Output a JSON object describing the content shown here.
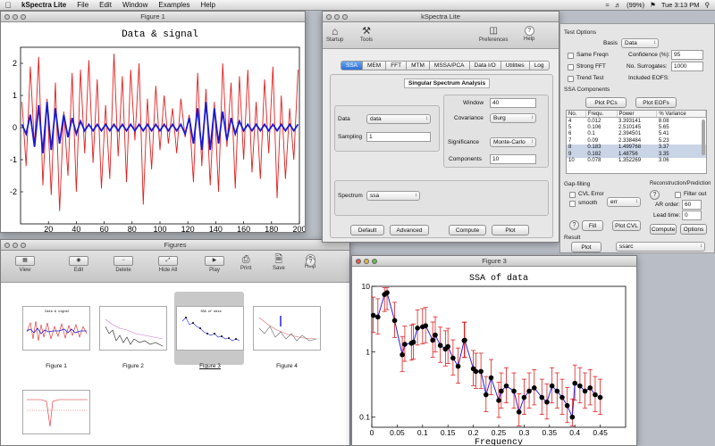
{
  "menubar": {
    "app": "kSpectra Lite",
    "items": [
      "File",
      "Edit",
      "Window",
      "Examples",
      "Help"
    ],
    "status": "(99%)",
    "clock": "Tue 3:13 PM"
  },
  "figure1": {
    "title": "Figure 1",
    "chart_data": {
      "type": "line",
      "title": "Data & signal",
      "xlim": [
        0,
        200
      ],
      "ylim": [
        -3,
        2.5
      ],
      "xticks": [
        20,
        40,
        60,
        80,
        100,
        120,
        140,
        160,
        180,
        200
      ],
      "yticks": [
        2,
        1,
        0,
        -1,
        -2
      ],
      "series": [
        {
          "color": "#e02020",
          "x": [
            1,
            4,
            7,
            10,
            13,
            16,
            19,
            22,
            25,
            28,
            31,
            34,
            37,
            40,
            43,
            46,
            49,
            52,
            55,
            58,
            61,
            64,
            67,
            70,
            73,
            76,
            79,
            82,
            85,
            88,
            91,
            94,
            97,
            100,
            103,
            106,
            109,
            112,
            115,
            118,
            121,
            124,
            127,
            130,
            133,
            136,
            139,
            142,
            145,
            148,
            151,
            154,
            157,
            160,
            163,
            166,
            169,
            172,
            175,
            178,
            181,
            184,
            187,
            190,
            193,
            196,
            199
          ],
          "y": [
            0.8,
            -1.2,
            1.9,
            -0.6,
            2.2,
            -1.8,
            0.9,
            -2.1,
            1.4,
            -2.6,
            0.5,
            -1.5,
            1.7,
            -2.0,
            1.8,
            -0.8,
            2.1,
            -1.1,
            1.5,
            -1.9,
            0.7,
            -1.6,
            2.3,
            -0.9,
            1.6,
            -1.7,
            1.8,
            -0.4,
            2.0,
            -2.4,
            0.9,
            -1.3,
            1.3,
            -0.7,
            1.0,
            -0.5,
            0.6,
            -0.8,
            0.9,
            -0.3,
            0.4,
            -1.7,
            1.7,
            -1.2,
            1.2,
            -1.8,
            0.8,
            -2.0,
            2.0,
            -0.6,
            1.4,
            -1.9,
            1.6,
            -1.0,
            1.8,
            -1.4,
            0.8,
            -1.6,
            1.5,
            -0.8,
            1.9,
            -2.2,
            1.0,
            -1.6,
            0.6,
            -1.0,
            1.8
          ]
        },
        {
          "color": "#1a1ad0",
          "x": [
            1,
            4,
            7,
            10,
            13,
            16,
            19,
            22,
            25,
            28,
            31,
            34,
            37,
            40,
            43,
            46,
            49,
            52,
            55,
            58,
            61,
            64,
            67,
            70,
            73,
            76,
            79,
            82,
            85,
            88,
            91,
            94,
            97,
            100,
            103,
            106,
            109,
            112,
            115,
            118,
            121,
            124,
            127,
            130,
            133,
            136,
            139,
            142,
            145,
            148,
            151,
            154,
            157,
            160,
            163,
            166,
            169,
            172,
            175,
            178,
            181,
            184,
            187,
            190,
            193,
            196,
            199
          ],
          "y": [
            0.1,
            -0.2,
            0.4,
            -0.6,
            0.7,
            -0.8,
            0.8,
            -0.7,
            0.6,
            -0.5,
            0.4,
            -0.3,
            0.3,
            -0.2,
            0.2,
            -0.1,
            0.1,
            -0.1,
            0.1,
            -0.1,
            0.1,
            -0.1,
            0.1,
            -0.1,
            0.1,
            -0.1,
            0.1,
            -0.1,
            0.1,
            -0.1,
            0.1,
            -0.1,
            0.1,
            -0.1,
            0.1,
            -0.1,
            0.1,
            -0.1,
            0.1,
            -0.2,
            0.3,
            -0.5,
            0.6,
            -0.7,
            0.8,
            -0.7,
            0.6,
            -0.5,
            0.5,
            -0.4,
            0.3,
            -0.2,
            0.2,
            -0.1,
            0.1,
            -0.1,
            0.1,
            -0.1,
            0.1,
            -0.1,
            0.1,
            -0.1,
            0.1,
            -0.1,
            0.1,
            -0.1,
            0.1
          ]
        }
      ]
    }
  },
  "kspectra": {
    "title": "kSpectra Lite",
    "toolbar": [
      "Startup",
      "Tools",
      "Preferences",
      "Help"
    ],
    "tabs": [
      "SSA",
      "MEM",
      "FFT",
      "MTM",
      "MSSA/PCA",
      "Data I/O",
      "Utilities",
      "Log"
    ],
    "active_tab": "SSA",
    "heading": "Singular Spectrum Analysis",
    "data_label": "Data",
    "data_value": "data",
    "sampling_label": "Sampling",
    "sampling_value": "1",
    "window_label": "Window",
    "window_value": "40",
    "covariance_label": "Covariance",
    "covariance_value": "Burg",
    "significance_label": "Significance",
    "significance_value": "Monte-Carlo",
    "components_label": "Components",
    "components_value": "10",
    "spectrum_label": "Spectrum",
    "spectrum_value": "ssa",
    "buttons": [
      "Default",
      "Advanced",
      "Compute",
      "Plot"
    ]
  },
  "options": {
    "test_options": "Test Options",
    "basis_label": "Basis",
    "basis_value": "Data",
    "same_freqn": "Same Freqn",
    "confidence_label": "Confidence (%):",
    "confidence_value": "95",
    "strong_fft": "Strong FFT",
    "surrogates_label": "No. Surrogates:",
    "surrogates_value": "1000",
    "trend_test": "Trend Test",
    "included_eofs": "Included EOFS:",
    "ssa_components": "SSA Components",
    "plot_pcs": "Plot PCs",
    "plot_eofs": "Plot EOFs",
    "table_headers": [
      "No.",
      "Frequ.",
      "Power",
      "% Variance"
    ],
    "rows": [
      [
        "4",
        "0.012",
        "3.393141",
        "8.08"
      ],
      [
        "5",
        "0.106",
        "2.510145",
        "5.65"
      ],
      [
        "6",
        "0.1",
        "2.394501",
        "5.41"
      ],
      [
        "7",
        "0.09",
        "2.338484",
        "5.23"
      ],
      [
        "8",
        "0.183",
        "1.499768",
        "3.37"
      ],
      [
        "9",
        "0.182",
        "1.48756",
        "3.35"
      ],
      [
        "10",
        "0.078",
        "1.352269",
        "3.06"
      ]
    ],
    "gap_filling": "Gap-filling",
    "cvl_error": "CVL Error",
    "smooth": "smooth",
    "err_value": "err",
    "fill": "Fill",
    "plot_cvl": "Plot CVL",
    "recon": "Reconstruction/Prediction",
    "filter_out": "Filter out",
    "ar_order_label": "AR order:",
    "ar_order_value": "60",
    "lead_time_label": "Lead time:",
    "lead_time_value": "0",
    "compute": "Compute",
    "options_btn": "Options",
    "result": "Result",
    "plot": "Plot",
    "result_value": "ssarc"
  },
  "figures": {
    "title": "Figures",
    "tools": [
      "View",
      "Edit",
      "Delete",
      "Hide All",
      "Play",
      "Print",
      "Save",
      "Help"
    ],
    "thumbs": [
      "Figure 1",
      "Figure 2",
      "Figure 3",
      "Figure 4"
    ]
  },
  "figure3": {
    "title": "Figure 3",
    "chart_data": {
      "type": "line",
      "title": "SSA of data",
      "xlabel": "Frequency",
      "xlim": [
        0,
        0.5
      ],
      "ylog": true,
      "ylim": [
        0.07,
        10
      ],
      "xticks": [
        0,
        0.05,
        0.1,
        0.15,
        0.2,
        0.25,
        0.3,
        0.35,
        0.4,
        0.45
      ],
      "ytick_labels": [
        "10",
        "1",
        "0.1"
      ],
      "x": [
        0.003,
        0.012,
        0.025,
        0.03,
        0.045,
        0.06,
        0.065,
        0.078,
        0.082,
        0.09,
        0.1,
        0.106,
        0.12,
        0.125,
        0.135,
        0.145,
        0.15,
        0.16,
        0.17,
        0.182,
        0.183,
        0.2,
        0.205,
        0.215,
        0.225,
        0.235,
        0.25,
        0.255,
        0.265,
        0.28,
        0.29,
        0.3,
        0.31,
        0.32,
        0.335,
        0.345,
        0.355,
        0.365,
        0.375,
        0.385,
        0.395,
        0.4,
        0.41,
        0.42,
        0.43,
        0.44,
        0.45
      ],
      "values": [
        3.6,
        3.4,
        7.5,
        8.0,
        3.0,
        0.9,
        1.3,
        1.35,
        1.4,
        2.3,
        2.4,
        2.5,
        1.5,
        1.8,
        1.25,
        1.1,
        1.2,
        0.8,
        0.6,
        1.48,
        1.5,
        0.55,
        0.5,
        0.5,
        0.22,
        0.4,
        0.18,
        0.25,
        0.3,
        0.25,
        0.12,
        0.2,
        0.25,
        0.28,
        0.2,
        0.17,
        0.3,
        0.25,
        0.2,
        0.15,
        0.1,
        0.33,
        0.3,
        0.25,
        0.28,
        0.22,
        0.2
      ],
      "error_color": "#e02020",
      "line_color": "#2222dd"
    }
  }
}
